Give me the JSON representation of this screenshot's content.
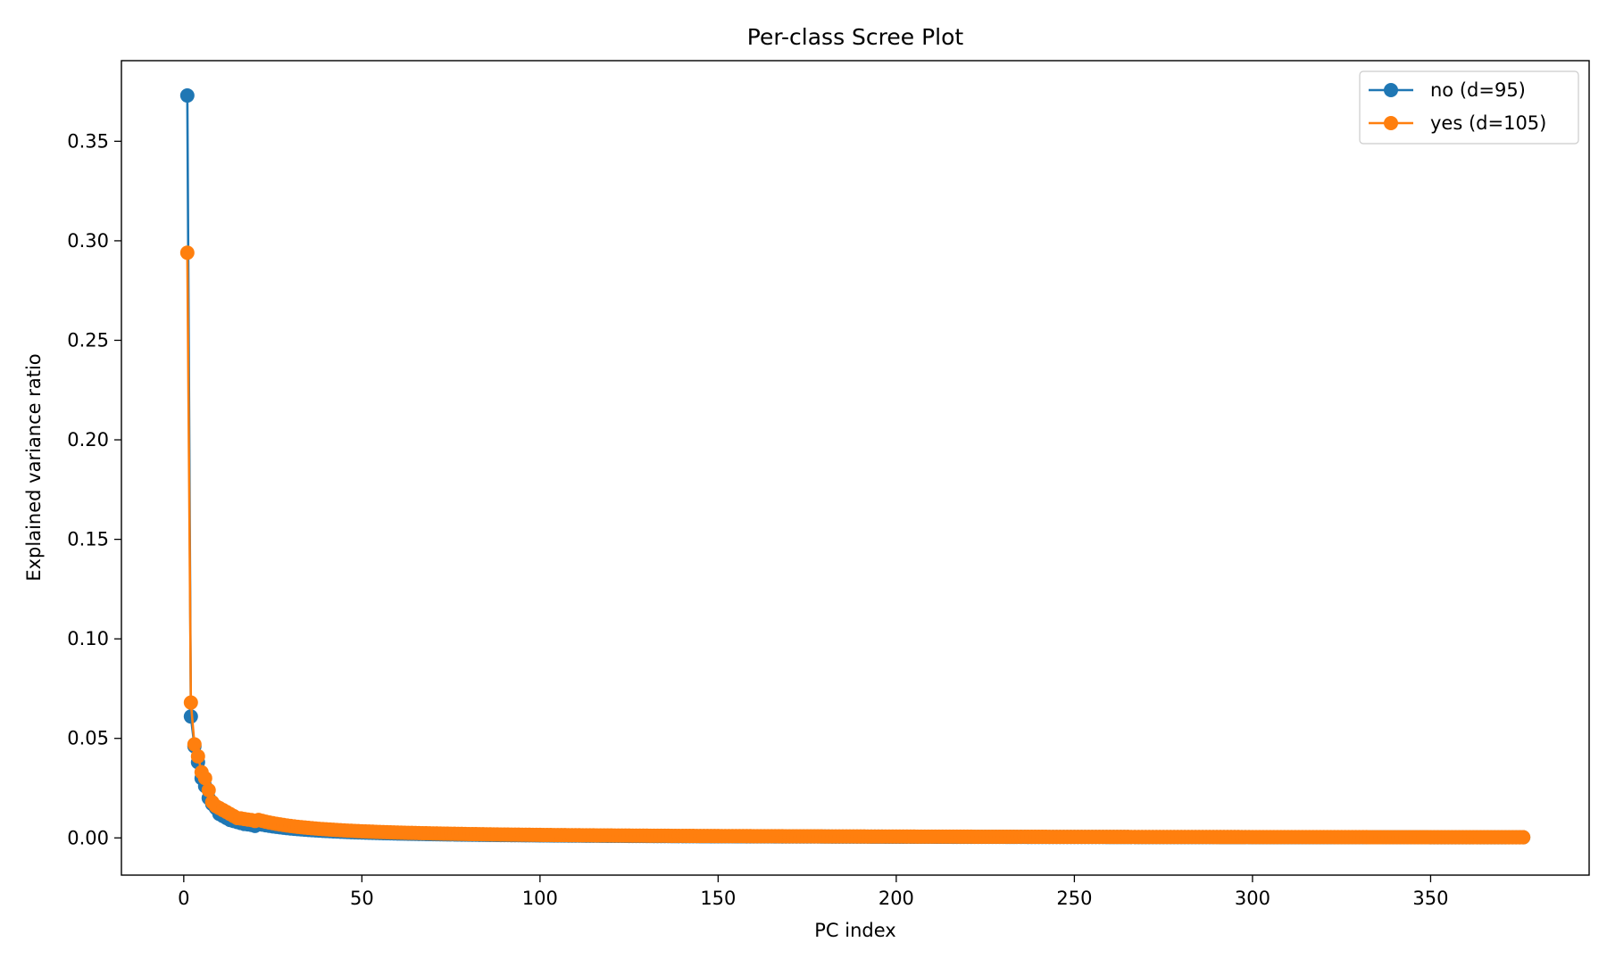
{
  "chart_data": {
    "type": "line",
    "title": "Per-class Scree Plot",
    "xlabel": "PC index",
    "ylabel": "Explained variance ratio",
    "xlim": [
      -17.5,
      394.5
    ],
    "ylim": [
      -0.0187,
      0.3905
    ],
    "x_ticks": [
      0,
      50,
      100,
      150,
      200,
      250,
      300,
      350
    ],
    "y_ticks": [
      0.0,
      0.05,
      0.1,
      0.15,
      0.2,
      0.25,
      0.3,
      0.35
    ],
    "grid": false,
    "legend_position": "top-right",
    "series": [
      {
        "name": "no (d=95)",
        "color": "#1f77b4",
        "marker": "circle",
        "n_points": 376,
        "head": [
          0.373,
          0.061,
          0.046,
          0.038,
          0.03,
          0.026,
          0.02,
          0.017,
          0.015,
          0.012,
          0.011,
          0.01,
          0.009,
          0.0085,
          0.008,
          0.0075,
          0.007,
          0.0068,
          0.0065,
          0.006
        ],
        "decay_after_head": {
          "coefficient": 0.2,
          "exponent": -1.1
        }
      },
      {
        "name": "yes (d=105)",
        "color": "#ff7f0e",
        "marker": "circle",
        "n_points": 376,
        "head": [
          0.294,
          0.068,
          0.047,
          0.041,
          0.033,
          0.03,
          0.024,
          0.018,
          0.016,
          0.015,
          0.014,
          0.013,
          0.012,
          0.011,
          0.01,
          0.0098,
          0.0095,
          0.0092,
          0.009,
          0.0085
        ],
        "decay_after_head": {
          "coefficient": 0.3,
          "exponent": -1.15
        }
      }
    ]
  }
}
